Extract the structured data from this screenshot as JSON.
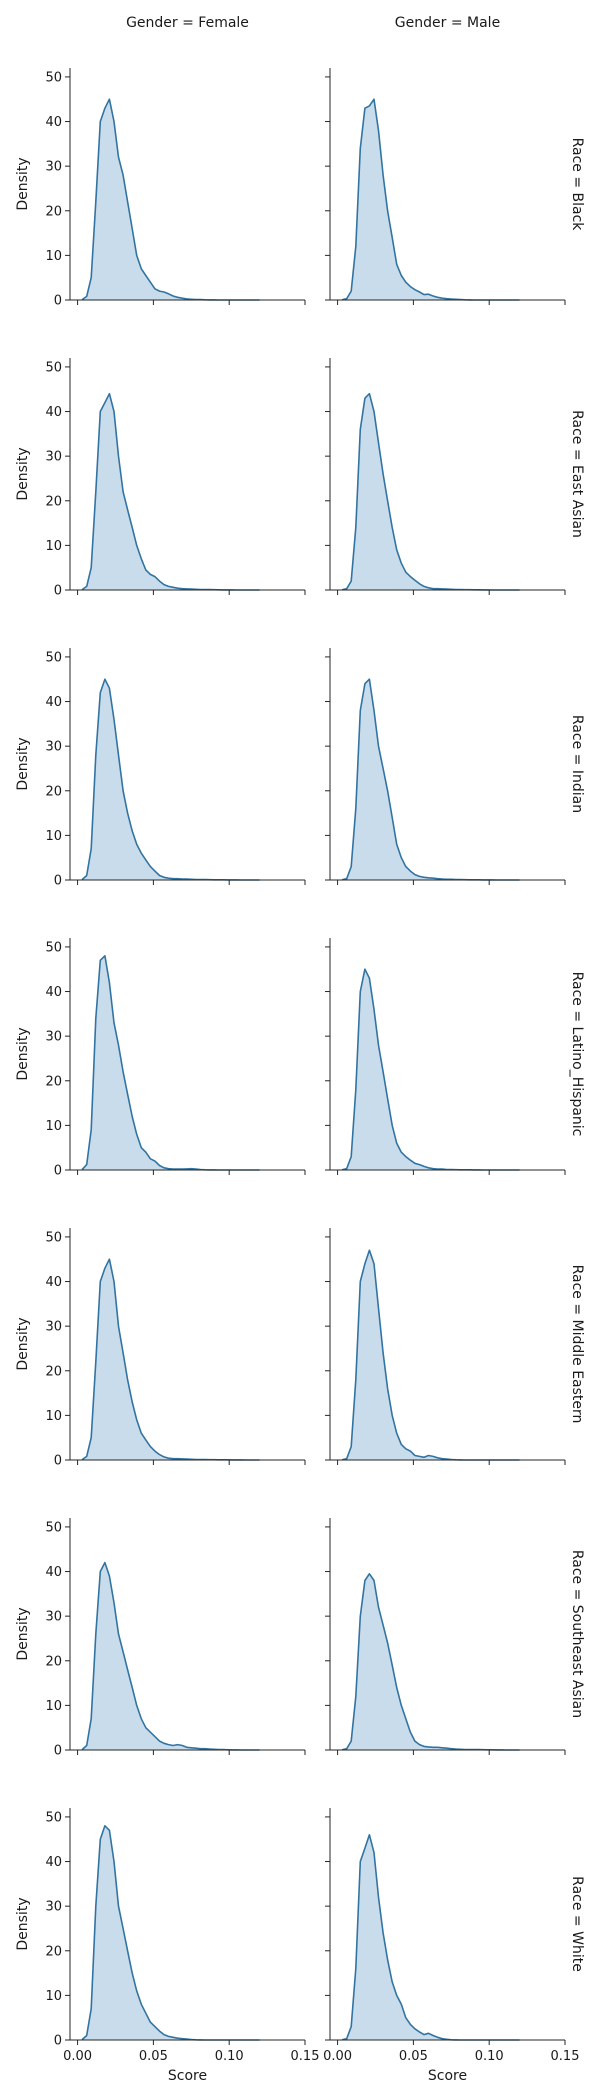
{
  "chart_data": {
    "type": "area",
    "layout": "facet-grid",
    "xlabel": "Score",
    "ylabel": "Density",
    "xlim": [
      -0.005,
      0.15
    ],
    "ylim": [
      0,
      52
    ],
    "xticks": [
      0.0,
      0.05,
      0.1,
      0.15
    ],
    "xtick_labels": [
      "0.00",
      "0.05",
      "0.10",
      "0.15"
    ],
    "yticks": [
      0,
      10,
      20,
      30,
      40,
      50
    ],
    "ytick_labels": [
      "0",
      "10",
      "20",
      "30",
      "40",
      "50"
    ],
    "grid": false,
    "legend": "none",
    "colors": {
      "line": "#3274a1",
      "fill": "#c3d8ea"
    },
    "col_titles": [
      "Gender = Female",
      "Gender = Male"
    ],
    "row_titles": [
      "Race = Black",
      "Race = East Asian",
      "Race = Indian",
      "Race = Latino_Hispanic",
      "Race = Middle Eastern",
      "Race = Southeast Asian",
      "Race = White"
    ],
    "x": [
      0.003,
      0.006,
      0.009,
      0.012,
      0.015,
      0.018,
      0.021,
      0.024,
      0.027,
      0.03,
      0.033,
      0.036,
      0.039,
      0.042,
      0.045,
      0.048,
      0.051,
      0.054,
      0.057,
      0.06,
      0.063,
      0.066,
      0.069,
      0.072,
      0.075,
      0.078,
      0.081,
      0.084,
      0.087,
      0.09,
      0.093,
      0.096,
      0.099,
      0.102,
      0.105,
      0.108,
      0.111,
      0.114,
      0.117,
      0.12
    ],
    "panels": [
      {
        "row": 0,
        "col": 0,
        "values": [
          0.1,
          0.8,
          5,
          22,
          40,
          43,
          45,
          40,
          32,
          28,
          22,
          16,
          10,
          7,
          5.5,
          4,
          2.5,
          2,
          1.8,
          1.4,
          0.9,
          0.6,
          0.4,
          0.25,
          0.15,
          0.1,
          0.08,
          0.05,
          0.03,
          0.02,
          0.01,
          0,
          0,
          0,
          0,
          0,
          0,
          0,
          0,
          0
        ]
      },
      {
        "row": 0,
        "col": 1,
        "values": [
          0.05,
          0.3,
          2,
          12,
          34,
          43,
          43.5,
          45,
          38,
          28,
          20,
          14,
          8,
          5.5,
          4,
          3,
          2.3,
          1.8,
          1.2,
          1.3,
          0.9,
          0.6,
          0.4,
          0.3,
          0.2,
          0.15,
          0.1,
          0.05,
          0.02,
          0.01,
          0,
          0,
          0,
          0,
          0,
          0,
          0,
          0,
          0,
          0
        ]
      },
      {
        "row": 1,
        "col": 0,
        "values": [
          0.1,
          0.8,
          5,
          22,
          40,
          42,
          44,
          40,
          30,
          22,
          18,
          14,
          10,
          7,
          4.5,
          3.5,
          3,
          2,
          1.2,
          0.8,
          0.6,
          0.4,
          0.3,
          0.25,
          0.2,
          0.15,
          0.1,
          0.08,
          0.08,
          0.06,
          0.05,
          0.03,
          0.03,
          0.02,
          0.01,
          0.01,
          0,
          0,
          0,
          0
        ]
      },
      {
        "row": 1,
        "col": 1,
        "values": [
          0.05,
          0.3,
          2,
          14,
          36,
          43,
          44,
          40,
          33,
          26,
          20,
          14,
          9,
          6,
          4,
          3,
          2.2,
          1.4,
          0.8,
          0.5,
          0.3,
          0.3,
          0.25,
          0.2,
          0.15,
          0.1,
          0.08,
          0.06,
          0.06,
          0.05,
          0.04,
          0.02,
          0.02,
          0.01,
          0.01,
          0,
          0,
          0,
          0,
          0
        ]
      },
      {
        "row": 2,
        "col": 0,
        "values": [
          0.1,
          1,
          7,
          28,
          42,
          45,
          43,
          36,
          28,
          20,
          15,
          11,
          8,
          6,
          4.5,
          3,
          2,
          1,
          0.6,
          0.4,
          0.3,
          0.3,
          0.2,
          0.2,
          0.15,
          0.1,
          0.1,
          0.08,
          0.06,
          0.05,
          0.05,
          0.05,
          0.03,
          0.02,
          0.02,
          0.01,
          0,
          0,
          0,
          0
        ]
      },
      {
        "row": 2,
        "col": 1,
        "values": [
          0.05,
          0.3,
          3,
          16,
          38,
          44,
          45,
          38,
          30,
          25,
          20,
          14,
          8,
          5,
          3,
          2,
          1.2,
          0.8,
          0.6,
          0.5,
          0.4,
          0.3,
          0.2,
          0.15,
          0.15,
          0.1,
          0.08,
          0.06,
          0.05,
          0.05,
          0.04,
          0.03,
          0.02,
          0.02,
          0.01,
          0,
          0,
          0,
          0,
          0
        ]
      },
      {
        "row": 3,
        "col": 0,
        "values": [
          0.1,
          1.2,
          9,
          34,
          47,
          48,
          42,
          33,
          28,
          22,
          17,
          12,
          8,
          5,
          4,
          2.5,
          2,
          1,
          0.5,
          0.3,
          0.2,
          0.2,
          0.2,
          0.25,
          0.3,
          0.2,
          0.1,
          0.05,
          0.03,
          0.02,
          0.01,
          0,
          0,
          0,
          0,
          0,
          0,
          0,
          0,
          0
        ]
      },
      {
        "row": 3,
        "col": 1,
        "values": [
          0.05,
          0.3,
          3,
          18,
          40,
          45,
          43,
          36,
          28,
          22,
          16,
          10,
          6,
          4,
          3,
          2.2,
          1.5,
          1.2,
          0.8,
          0.5,
          0.3,
          0.2,
          0.2,
          0.1,
          0.08,
          0.06,
          0.05,
          0.05,
          0.04,
          0.03,
          0.02,
          0.01,
          0,
          0,
          0,
          0,
          0,
          0,
          0,
          0
        ]
      },
      {
        "row": 4,
        "col": 0,
        "values": [
          0.1,
          0.8,
          5,
          22,
          40,
          43,
          45,
          40,
          30,
          24,
          18,
          13,
          9,
          6,
          4.5,
          3,
          2,
          1.2,
          0.7,
          0.4,
          0.3,
          0.3,
          0.25,
          0.2,
          0.15,
          0.12,
          0.1,
          0.08,
          0.06,
          0.06,
          0.05,
          0.04,
          0.04,
          0.03,
          0.02,
          0.02,
          0.01,
          0.01,
          0,
          0
        ]
      },
      {
        "row": 4,
        "col": 1,
        "values": [
          0.05,
          0.3,
          3,
          18,
          40,
          44,
          47,
          44,
          34,
          24,
          16,
          10,
          6,
          3.5,
          2.5,
          2,
          1,
          0.8,
          0.6,
          1,
          0.8,
          0.5,
          0.3,
          0.2,
          0.1,
          0.05,
          0.02,
          0.01,
          0,
          0,
          0,
          0,
          0,
          0,
          0,
          0,
          0,
          0,
          0,
          0
        ]
      },
      {
        "row": 5,
        "col": 0,
        "values": [
          0.1,
          1,
          7,
          26,
          40,
          42,
          39,
          33,
          26,
          22,
          18,
          14,
          10,
          7,
          5,
          4,
          3,
          2,
          1.5,
          1.2,
          1,
          1.2,
          1,
          0.6,
          0.5,
          0.4,
          0.3,
          0.3,
          0.2,
          0.15,
          0.1,
          0.08,
          0.05,
          0.03,
          0.02,
          0.01,
          0,
          0,
          0,
          0
        ]
      },
      {
        "row": 5,
        "col": 1,
        "values": [
          0.05,
          0.3,
          2,
          12,
          30,
          38,
          39.5,
          38,
          32,
          28,
          24,
          19,
          14,
          10,
          7,
          4,
          2,
          1.2,
          0.8,
          0.7,
          0.6,
          0.6,
          0.5,
          0.4,
          0.3,
          0.2,
          0.15,
          0.12,
          0.1,
          0.1,
          0.08,
          0.06,
          0.05,
          0.04,
          0.03,
          0.02,
          0.01,
          0.01,
          0,
          0
        ]
      },
      {
        "row": 6,
        "col": 0,
        "values": [
          0.1,
          1,
          7,
          30,
          45,
          48,
          47,
          40,
          30,
          25,
          20,
          15,
          11,
          8,
          6,
          4,
          3,
          2,
          1.2,
          0.8,
          0.6,
          0.4,
          0.3,
          0.2,
          0.1,
          0.05,
          0.02,
          0.01,
          0,
          0,
          0,
          0,
          0,
          0,
          0,
          0,
          0,
          0,
          0,
          0
        ]
      },
      {
        "row": 6,
        "col": 1,
        "values": [
          0.05,
          0.3,
          3,
          16,
          40,
          43,
          46,
          42,
          32,
          24,
          18,
          13,
          10,
          8,
          5,
          3.5,
          2.5,
          1.8,
          1.2,
          1.5,
          1,
          0.6,
          0.3,
          0.15,
          0.05,
          0.02,
          0.01,
          0,
          0,
          0,
          0,
          0,
          0,
          0,
          0,
          0,
          0,
          0,
          0,
          0
        ]
      }
    ]
  }
}
